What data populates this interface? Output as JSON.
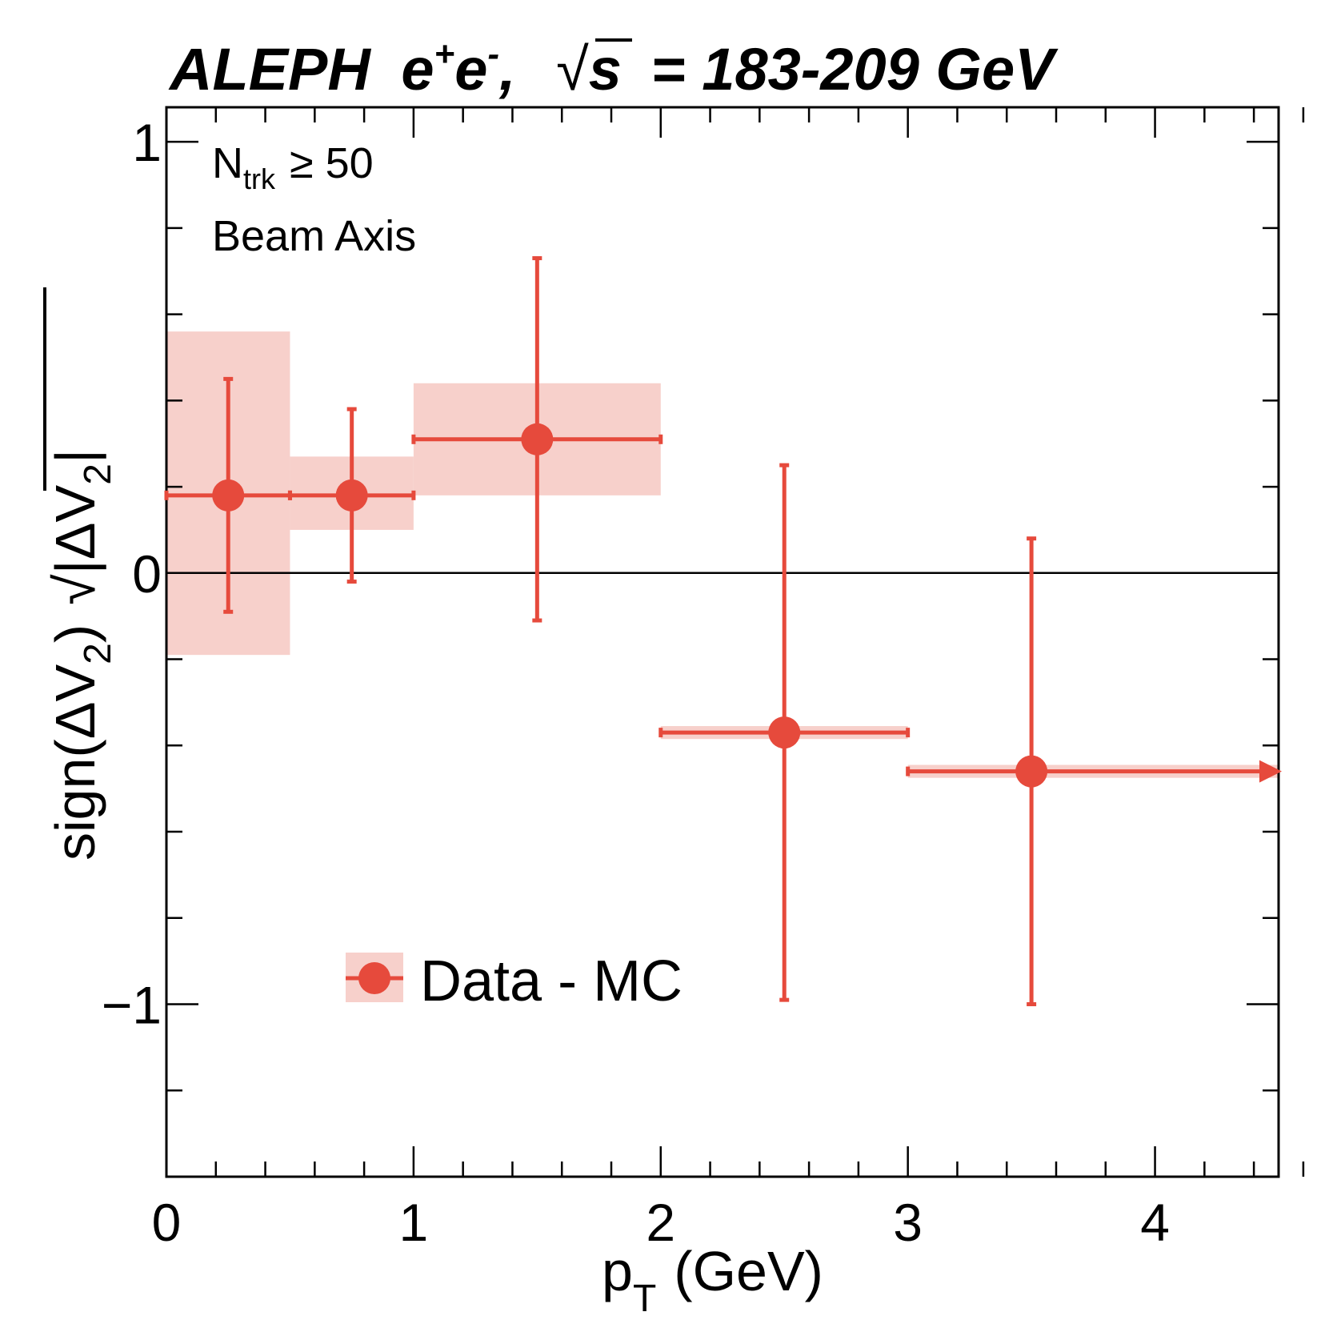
{
  "chart_data": {
    "type": "scatter",
    "title": {
      "experiment": "ALEPH",
      "beam": "e",
      "beam_sup_plus": "+",
      "beam_sup_minus": "-",
      "comma": ",",
      "sqrt_symbol": "√",
      "energy_var": "s",
      "energy_value": "= 183-209 GeV"
    },
    "annotations": {
      "ntrk_symbol": "N",
      "ntrk_sub": "trk",
      "ntrk_cut": "≥ 50",
      "axis_label": "Beam Axis"
    },
    "xlabel": {
      "main": "p",
      "sub": "T",
      "unit": "(GeV)"
    },
    "ylabel": {
      "prefix": "sign(ΔV",
      "sub1": "2",
      "close": ")",
      "sqrt_symbol": "√",
      "abs_content": "|ΔV",
      "sub2": "2",
      "abs_close": "|"
    },
    "xlim": [
      0,
      4.5
    ],
    "ylim": [
      -1.4,
      1.08
    ],
    "x_major_ticks": [
      0,
      1,
      2,
      3,
      4
    ],
    "x_tick_labels": [
      "0",
      "1",
      "2",
      "3",
      "4"
    ],
    "x_minor_step": 0.2,
    "y_major_ticks": [
      -1,
      0,
      1
    ],
    "y_tick_labels": [
      "−1",
      "0",
      "1"
    ],
    "y_minor_step": 0.2,
    "zero_line": true,
    "legend": {
      "label": "Data - MC",
      "position": "bottom-left"
    },
    "series": [
      {
        "name": "Data - MC",
        "color": "#e64a3c",
        "band_color": "#f7d0cb",
        "points": [
          {
            "x": 0.25,
            "xlo": 0.0,
            "xhi": 0.5,
            "y": 0.18,
            "ylo": -0.09,
            "yhi": 0.45,
            "syslo": -0.19,
            "syshi": 0.56,
            "arrow": false
          },
          {
            "x": 0.75,
            "xlo": 0.5,
            "xhi": 1.0,
            "y": 0.18,
            "ylo": -0.02,
            "yhi": 0.38,
            "syslo": 0.1,
            "syshi": 0.27,
            "arrow": false
          },
          {
            "x": 1.5,
            "xlo": 1.0,
            "xhi": 2.0,
            "y": 0.31,
            "ylo": -0.11,
            "yhi": 0.73,
            "syslo": 0.18,
            "syshi": 0.44,
            "arrow": false
          },
          {
            "x": 2.5,
            "xlo": 2.0,
            "xhi": 3.0,
            "y": -0.37,
            "ylo": -0.99,
            "yhi": 0.25,
            "syslo": -0.385,
            "syshi": -0.355,
            "arrow": false
          },
          {
            "x": 3.5,
            "xlo": 3.0,
            "xhi": 4.5,
            "y": -0.46,
            "ylo": -1.0,
            "yhi": 0.08,
            "syslo": -0.475,
            "syshi": -0.445,
            "arrow": true
          }
        ]
      }
    ]
  }
}
